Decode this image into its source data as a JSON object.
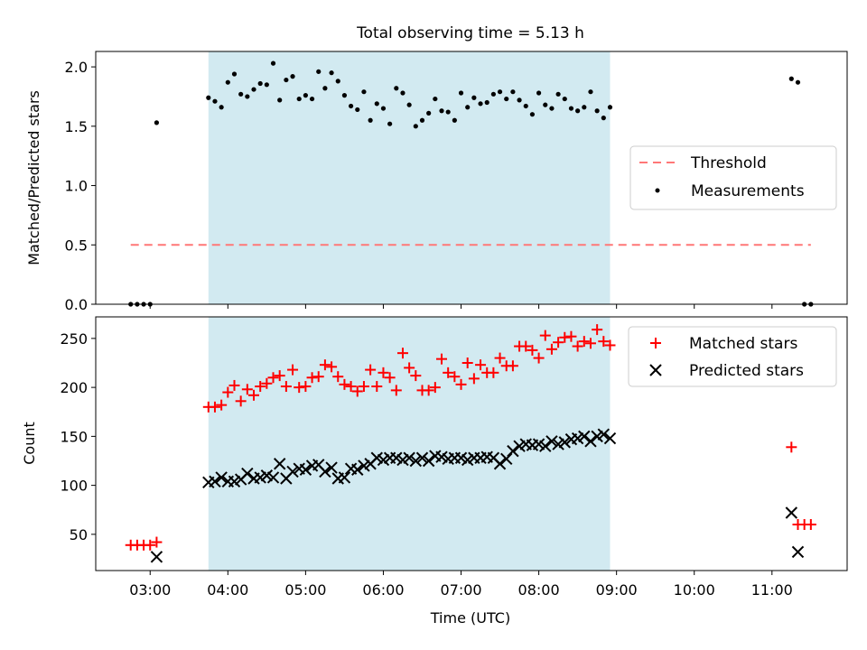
{
  "chart_data": [
    {
      "type": "scatter",
      "title": "Total observing time = 5.13 h",
      "ylabel": "Matched/Predicted stars",
      "xlabel": "",
      "xlim": [
        "02:18",
        "11:58"
      ],
      "ylim": [
        0,
        2.13
      ],
      "yticks": [
        0.0,
        0.5,
        1.0,
        1.5,
        2.0
      ],
      "ytick_labels": [
        "0.0",
        "0.5",
        "1.0",
        "1.5",
        "2.0"
      ],
      "grid": false,
      "legend_position": "center-right",
      "shaded_span": [
        "03:45",
        "08:55"
      ],
      "shade_color": "#add8e6",
      "threshold": {
        "name": "Threshold",
        "value": 0.5,
        "x_range": [
          "02:45",
          "11:30"
        ],
        "color": "#ff7777"
      },
      "series": [
        {
          "name": "Measurements",
          "color": "#000000",
          "marker": "dot",
          "points": [
            [
              "02:45",
              0.0
            ],
            [
              "02:50",
              0.0
            ],
            [
              "02:55",
              0.0
            ],
            [
              "03:00",
              0.0
            ],
            [
              "03:05",
              1.53
            ],
            [
              "03:45",
              1.74
            ],
            [
              "03:50",
              1.71
            ],
            [
              "03:55",
              1.66
            ],
            [
              "04:00",
              1.87
            ],
            [
              "04:05",
              1.94
            ],
            [
              "04:10",
              1.77
            ],
            [
              "04:15",
              1.75
            ],
            [
              "04:20",
              1.81
            ],
            [
              "04:25",
              1.86
            ],
            [
              "04:30",
              1.85
            ],
            [
              "04:35",
              2.03
            ],
            [
              "04:40",
              1.72
            ],
            [
              "04:45",
              1.89
            ],
            [
              "04:50",
              1.92
            ],
            [
              "04:55",
              1.73
            ],
            [
              "05:00",
              1.76
            ],
            [
              "05:05",
              1.73
            ],
            [
              "05:10",
              1.96
            ],
            [
              "05:15",
              1.82
            ],
            [
              "05:20",
              1.95
            ],
            [
              "05:25",
              1.88
            ],
            [
              "05:30",
              1.76
            ],
            [
              "05:35",
              1.67
            ],
            [
              "05:40",
              1.64
            ],
            [
              "05:45",
              1.79
            ],
            [
              "05:50",
              1.55
            ],
            [
              "05:55",
              1.69
            ],
            [
              "06:00",
              1.65
            ],
            [
              "06:05",
              1.52
            ],
            [
              "06:10",
              1.82
            ],
            [
              "06:15",
              1.78
            ],
            [
              "06:20",
              1.68
            ],
            [
              "06:25",
              1.5
            ],
            [
              "06:30",
              1.55
            ],
            [
              "06:35",
              1.61
            ],
            [
              "06:40",
              1.73
            ],
            [
              "06:45",
              1.63
            ],
            [
              "06:50",
              1.62
            ],
            [
              "06:55",
              1.55
            ],
            [
              "07:00",
              1.78
            ],
            [
              "07:05",
              1.66
            ],
            [
              "07:10",
              1.74
            ],
            [
              "07:15",
              1.69
            ],
            [
              "07:20",
              1.7
            ],
            [
              "07:25",
              1.77
            ],
            [
              "07:30",
              1.79
            ],
            [
              "07:35",
              1.73
            ],
            [
              "07:40",
              1.79
            ],
            [
              "07:45",
              1.72
            ],
            [
              "07:50",
              1.67
            ],
            [
              "07:55",
              1.6
            ],
            [
              "08:00",
              1.78
            ],
            [
              "08:05",
              1.68
            ],
            [
              "08:10",
              1.65
            ],
            [
              "08:15",
              1.77
            ],
            [
              "08:20",
              1.73
            ],
            [
              "08:25",
              1.65
            ],
            [
              "08:30",
              1.63
            ],
            [
              "08:35",
              1.66
            ],
            [
              "08:40",
              1.79
            ],
            [
              "08:45",
              1.63
            ],
            [
              "08:50",
              1.57
            ],
            [
              "08:55",
              1.66
            ],
            [
              "11:15",
              1.9
            ],
            [
              "11:20",
              1.87
            ],
            [
              "11:25",
              0.0
            ],
            [
              "11:30",
              0.0
            ]
          ]
        }
      ]
    },
    {
      "type": "scatter",
      "title": "",
      "ylabel": "Count",
      "xlabel": "Time (UTC)",
      "xlim": [
        "02:18",
        "11:58"
      ],
      "ylim": [
        13,
        272
      ],
      "xticks": [
        "03:00",
        "04:00",
        "05:00",
        "06:00",
        "07:00",
        "08:00",
        "09:00",
        "10:00",
        "11:00"
      ],
      "yticks": [
        50,
        100,
        150,
        200,
        250
      ],
      "ytick_labels": [
        "50",
        "100",
        "150",
        "200",
        "250"
      ],
      "grid": false,
      "legend_position": "top-right",
      "shaded_span": [
        "03:45",
        "08:55"
      ],
      "shade_color": "#add8e6",
      "series": [
        {
          "name": "Matched stars",
          "color": "#ff0000",
          "marker": "plus",
          "points": [
            [
              "02:45",
              39
            ],
            [
              "02:50",
              39
            ],
            [
              "02:55",
              39
            ],
            [
              "03:00",
              39
            ],
            [
              "03:05",
              42
            ],
            [
              "03:45",
              180
            ],
            [
              "03:50",
              180
            ],
            [
              "03:55",
              182
            ],
            [
              "04:00",
              195
            ],
            [
              "04:05",
              202
            ],
            [
              "04:10",
              186
            ],
            [
              "04:15",
              198
            ],
            [
              "04:20",
              192
            ],
            [
              "04:25",
              201
            ],
            [
              "04:30",
              204
            ],
            [
              "04:35",
              210
            ],
            [
              "04:40",
              212
            ],
            [
              "04:45",
              201
            ],
            [
              "04:50",
              218
            ],
            [
              "04:55",
              200
            ],
            [
              "05:00",
              201
            ],
            [
              "05:05",
              210
            ],
            [
              "05:10",
              211
            ],
            [
              "05:15",
              223
            ],
            [
              "05:20",
              221
            ],
            [
              "05:25",
              211
            ],
            [
              "05:30",
              203
            ],
            [
              "05:35",
              201
            ],
            [
              "05:40",
              196
            ],
            [
              "05:45",
              201
            ],
            [
              "05:50",
              218
            ],
            [
              "05:55",
              201
            ],
            [
              "06:00",
              215
            ],
            [
              "06:05",
              210
            ],
            [
              "06:10",
              197
            ],
            [
              "06:15",
              235
            ],
            [
              "06:20",
              220
            ],
            [
              "06:25",
              212
            ],
            [
              "06:30",
              197
            ],
            [
              "06:35",
              197
            ],
            [
              "06:40",
              200
            ],
            [
              "06:45",
              229
            ],
            [
              "06:50",
              215
            ],
            [
              "06:55",
              211
            ],
            [
              "07:00",
              203
            ],
            [
              "07:05",
              225
            ],
            [
              "07:10",
              209
            ],
            [
              "07:15",
              223
            ],
            [
              "07:20",
              215
            ],
            [
              "07:25",
              215
            ],
            [
              "07:30",
              230
            ],
            [
              "07:35",
              222
            ],
            [
              "07:40",
              222
            ],
            [
              "07:45",
              242
            ],
            [
              "07:50",
              242
            ],
            [
              "07:55",
              238
            ],
            [
              "08:00",
              230
            ],
            [
              "08:05",
              253
            ],
            [
              "08:10",
              239
            ],
            [
              "08:15",
              246
            ],
            [
              "08:20",
              251
            ],
            [
              "08:25",
              252
            ],
            [
              "08:30",
              242
            ],
            [
              "08:35",
              247
            ],
            [
              "08:40",
              245
            ],
            [
              "08:45",
              259
            ],
            [
              "08:50",
              247
            ],
            [
              "08:55",
              243
            ],
            [
              "11:15",
              139
            ],
            [
              "11:20",
              60
            ],
            [
              "11:25",
              60
            ],
            [
              "11:30",
              60
            ]
          ]
        },
        {
          "name": "Predicted stars",
          "color": "#000000",
          "marker": "x",
          "points": [
            [
              "03:05",
              27
            ],
            [
              "03:45",
              103
            ],
            [
              "03:50",
              104
            ],
            [
              "03:55",
              108
            ],
            [
              "04:00",
              104
            ],
            [
              "04:05",
              104
            ],
            [
              "04:10",
              106
            ],
            [
              "04:15",
              112
            ],
            [
              "04:20",
              107
            ],
            [
              "04:25",
              108
            ],
            [
              "04:30",
              110
            ],
            [
              "04:35",
              108
            ],
            [
              "04:40",
              122
            ],
            [
              "04:45",
              107
            ],
            [
              "04:50",
              114
            ],
            [
              "04:55",
              117
            ],
            [
              "05:00",
              116
            ],
            [
              "05:05",
              120
            ],
            [
              "05:10",
              121
            ],
            [
              "05:15",
              114
            ],
            [
              "05:20",
              118
            ],
            [
              "05:25",
              107
            ],
            [
              "05:30",
              108
            ],
            [
              "05:35",
              117
            ],
            [
              "05:40",
              116
            ],
            [
              "05:45",
              120
            ],
            [
              "05:50",
              122
            ],
            [
              "05:55",
              128
            ],
            [
              "06:00",
              126
            ],
            [
              "06:05",
              128
            ],
            [
              "06:10",
              128
            ],
            [
              "06:15",
              126
            ],
            [
              "06:20",
              128
            ],
            [
              "06:25",
              125
            ],
            [
              "06:30",
              128
            ],
            [
              "06:35",
              125
            ],
            [
              "06:40",
              130
            ],
            [
              "06:45",
              129
            ],
            [
              "06:50",
              127
            ],
            [
              "06:55",
              128
            ],
            [
              "07:00",
              128
            ],
            [
              "07:05",
              126
            ],
            [
              "07:10",
              128
            ],
            [
              "07:15",
              128
            ],
            [
              "07:20",
              129
            ],
            [
              "07:25",
              128
            ],
            [
              "07:30",
              122
            ],
            [
              "07:35",
              127
            ],
            [
              "07:40",
              135
            ],
            [
              "07:45",
              140
            ],
            [
              "07:50",
              142
            ],
            [
              "07:55",
              141
            ],
            [
              "08:00",
              142
            ],
            [
              "08:05",
              140
            ],
            [
              "08:10",
              145
            ],
            [
              "08:15",
              142
            ],
            [
              "08:20",
              144
            ],
            [
              "08:25",
              147
            ],
            [
              "08:30",
              148
            ],
            [
              "08:35",
              150
            ],
            [
              "08:40",
              145
            ],
            [
              "08:45",
              150
            ],
            [
              "08:50",
              152
            ],
            [
              "08:55",
              148
            ],
            [
              "11:15",
              72
            ],
            [
              "11:20",
              32
            ]
          ]
        }
      ]
    }
  ]
}
